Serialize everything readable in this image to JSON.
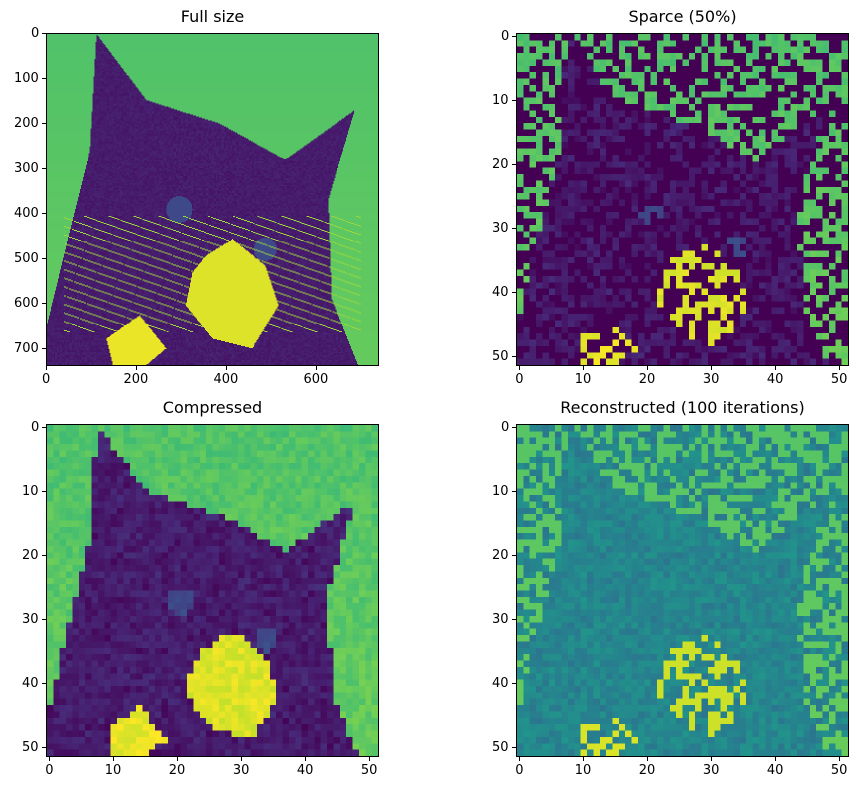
{
  "figure": {
    "colormap": "viridis",
    "panels": [
      {
        "id": "full",
        "title": "Full size",
        "image_size": [
          740,
          740
        ],
        "x_ticks": [
          "0",
          "200",
          "400",
          "600"
        ],
        "y_ticks": [
          "0",
          "100",
          "200",
          "300",
          "400",
          "500",
          "600",
          "700"
        ],
        "x_tick_values": [
          0,
          200,
          400,
          600
        ],
        "y_tick_values": [
          0,
          100,
          200,
          300,
          400,
          500,
          600,
          700
        ],
        "extent": [
          0,
          740
        ],
        "style": "full"
      },
      {
        "id": "sparse",
        "title": "Sparce (50%)",
        "image_size": [
          52,
          52
        ],
        "x_ticks": [
          "0",
          "10",
          "20",
          "30",
          "40",
          "50"
        ],
        "y_ticks": [
          "0",
          "10",
          "20",
          "30",
          "40",
          "50"
        ],
        "x_tick_values": [
          0,
          10,
          20,
          30,
          40,
          50
        ],
        "y_tick_values": [
          0,
          10,
          20,
          30,
          40,
          50
        ],
        "extent": [
          -0.5,
          51.5
        ],
        "style": "sparse"
      },
      {
        "id": "compressed",
        "title": "Compressed",
        "image_size": [
          52,
          52
        ],
        "x_ticks": [
          "0",
          "10",
          "20",
          "30",
          "40",
          "50"
        ],
        "y_ticks": [
          "0",
          "10",
          "20",
          "30",
          "40",
          "50"
        ],
        "x_tick_values": [
          0,
          10,
          20,
          30,
          40,
          50
        ],
        "y_tick_values": [
          0,
          10,
          20,
          30,
          40,
          50
        ],
        "extent": [
          -0.5,
          51.5
        ],
        "style": "compressed"
      },
      {
        "id": "reconstructed",
        "title": "Reconstructed (100 iterations)",
        "image_size": [
          52,
          52
        ],
        "x_ticks": [
          "0",
          "10",
          "20",
          "30",
          "40",
          "50"
        ],
        "y_ticks": [
          "0",
          "10",
          "20",
          "30",
          "40",
          "50"
        ],
        "x_tick_values": [
          0,
          10,
          20,
          30,
          40,
          50
        ],
        "y_tick_values": [
          0,
          10,
          20,
          30,
          40,
          50
        ],
        "extent": [
          -0.5,
          51.5
        ],
        "style": "reconstructed"
      }
    ]
  }
}
